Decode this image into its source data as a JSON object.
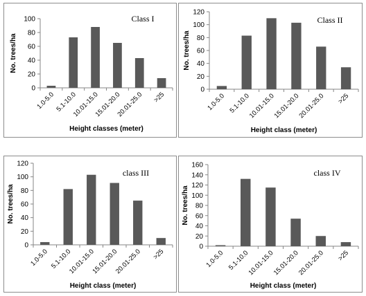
{
  "chart_data": [
    {
      "type": "bar",
      "title": "Class I",
      "xlabel": "Height classes (meter)",
      "ylabel": "No. trees/ha",
      "categories": [
        "1.0-5.0",
        "5.1-10.0",
        "10.01-15.0",
        "15.01-20.0",
        "20.01-25.0",
        ">25"
      ],
      "values": [
        3,
        73,
        88,
        65,
        43,
        14
      ],
      "ylim": [
        0,
        100
      ],
      "yticks": [
        0,
        20,
        40,
        60,
        80,
        100
      ],
      "grid": false,
      "bar_color": "#595959"
    },
    {
      "type": "bar",
      "title": "Class II",
      "xlabel": "Height class (meter)",
      "ylabel": "No. trees/ha",
      "categories": [
        "1.0-5.0",
        "5.1-10.0",
        "10.01-15.0",
        "15.01-20.0",
        "20.01-25.0",
        ">25"
      ],
      "values": [
        5,
        83,
        110,
        103,
        66,
        34
      ],
      "ylim": [
        0,
        120
      ],
      "yticks": [
        0,
        20,
        40,
        60,
        80,
        100,
        120
      ],
      "grid": false,
      "bar_color": "#595959"
    },
    {
      "type": "bar",
      "title": "class III",
      "xlabel": "Height class (meter)",
      "ylabel": "No. trees/ha",
      "categories": [
        "1.0-5.0",
        "5.1-10.0",
        "10.01-15.0",
        "15.01-20.0",
        "20.01-25.0",
        ">25"
      ],
      "values": [
        4,
        82,
        103,
        91,
        65,
        10
      ],
      "ylim": [
        0,
        120
      ],
      "yticks": [
        0,
        20,
        40,
        60,
        80,
        100,
        120
      ],
      "grid": false,
      "bar_color": "#595959"
    },
    {
      "type": "bar",
      "title": "class IV",
      "xlabel": "Height class (meter)",
      "ylabel": "No. trees/ha",
      "categories": [
        "1.0-5.0",
        "5.1-10.0",
        "10.01-15.0",
        "15.01-20.0",
        "20.01-25.0",
        ">25"
      ],
      "values": [
        2,
        132,
        115,
        54,
        20,
        8
      ],
      "ylim": [
        0,
        160
      ],
      "yticks": [
        0,
        20,
        40,
        60,
        80,
        100,
        120,
        140,
        160
      ],
      "grid": false,
      "bar_color": "#595959"
    }
  ]
}
